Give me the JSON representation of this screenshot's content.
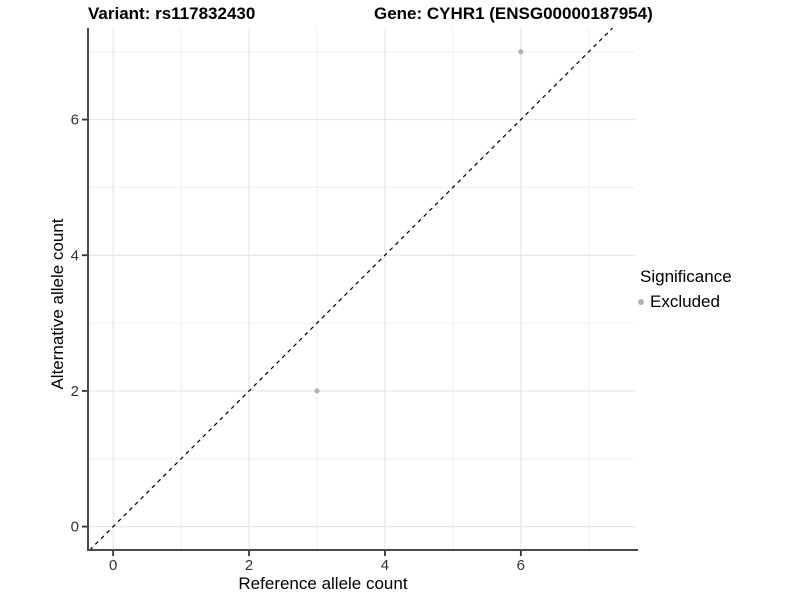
{
  "chart_data": {
    "type": "scatter",
    "title_left": "Variant: rs117832430",
    "title_right": "Gene: CYHR1 (ENSG00000187954)",
    "xlabel": "Reference allele count",
    "ylabel": "Alternative allele count",
    "x_ticks": [
      0,
      2,
      4,
      6
    ],
    "y_ticks": [
      0,
      2,
      4,
      6
    ],
    "x_minor_ticks": [
      1,
      3,
      5,
      7
    ],
    "y_minor_ticks": [
      1,
      3,
      5,
      7
    ],
    "xlim": [
      -0.37,
      7.68
    ],
    "ylim": [
      -0.345,
      7.35
    ],
    "grid": true,
    "identity_line": {
      "equation": "y = x",
      "style": "dashed",
      "color": "#000000"
    },
    "series": [
      {
        "name": "Excluded",
        "color": "#b3b3b3",
        "points": [
          [
            3,
            2
          ],
          [
            6,
            7
          ]
        ]
      }
    ],
    "legend": {
      "title": "Significance",
      "position": "right",
      "items": [
        {
          "label": "Excluded",
          "color": "#b3b3b3",
          "marker": "point"
        }
      ]
    },
    "colors": {
      "background": "#ffffff",
      "grid_major": "#e6e6e6",
      "grid_minor": "#f0f0f0",
      "axis_line": "#4a4a4a",
      "tick": "#333333",
      "tick_label": "#333333",
      "point": "#b3b3b3"
    }
  }
}
